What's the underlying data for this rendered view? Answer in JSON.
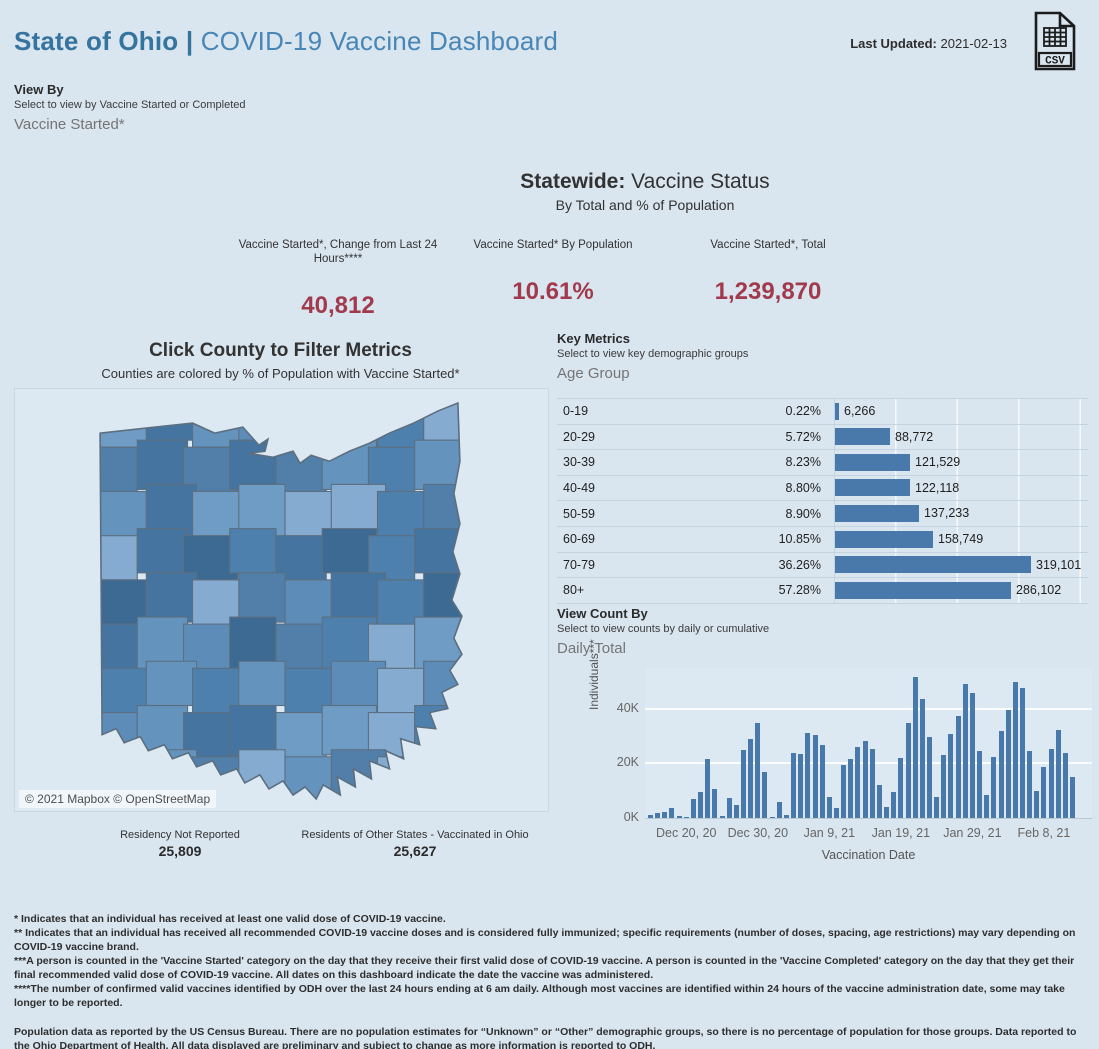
{
  "page": {
    "title_bold": "State of Ohio",
    "title_sep": " | ",
    "title_rest": "COVID-19 Vaccine Dashboard",
    "last_updated_label": "Last Updated:",
    "last_updated_value": " 2021-02-13",
    "csv_icon_label": "CSV"
  },
  "colors": {
    "page_bg": "#d9e5ef",
    "header_blue_bold": "#35749f",
    "header_blue": "#4886b6",
    "kpi_red": "#a13a4c",
    "bar_blue": "#4879aa",
    "map_border": "#5c6f80",
    "map_palette": [
      "#6f9cc4",
      "#5d8cb8",
      "#4e80ad",
      "#44749f",
      "#3c6a93",
      "#85abd0",
      "#6493bd",
      "#527fa9"
    ]
  },
  "view_by": {
    "label": "View By",
    "hint": "Select to view by Vaccine Started or Completed",
    "value": "Vaccine Started*"
  },
  "statewide": {
    "title_bold": "Statewide:",
    "title_rest": " Vaccine Status",
    "subtitle": "By Total and % of Population",
    "kpis": [
      {
        "label": "Vaccine Started*, Change from Last 24 Hours****",
        "value": "40,812"
      },
      {
        "label": "Vaccine Started* By Population",
        "value": "10.61%"
      },
      {
        "label": "Vaccine Started*, Total",
        "value": "1,239,870"
      }
    ]
  },
  "map": {
    "title": "Click County to Filter Metrics",
    "subtitle": "Counties are colored by % of Population with Vaccine Started*",
    "attribution": "© 2021 Mapbox © OpenStreetMap"
  },
  "below_map": [
    {
      "label": "Residency Not Reported",
      "value": "25,809"
    },
    {
      "label": "Residents of Other States - Vaccinated in Ohio",
      "value": "25,627"
    }
  ],
  "key_metrics": {
    "title": "Key Metrics",
    "hint": "Select to view key demographic groups",
    "selector": "Age Group"
  },
  "view_count": {
    "title": "View Count By",
    "hint": "Select to view counts by daily or cumulative",
    "selector": "Daily Total"
  },
  "chart_data": [
    {
      "type": "bar",
      "title": "Key Metrics by Age Group",
      "orientation": "horizontal",
      "categories": [
        "0-19",
        "20-29",
        "30-39",
        "40-49",
        "50-59",
        "60-69",
        "70-79",
        "80+"
      ],
      "pct_of_population": [
        "0.22%",
        "5.72%",
        "8.23%",
        "8.80%",
        "8.90%",
        "10.85%",
        "36.26%",
        "57.28%"
      ],
      "values": [
        6266,
        88772,
        121529,
        122118,
        137233,
        158749,
        319101,
        286102
      ],
      "value_labels": [
        "6,266",
        "88,772",
        "121,529",
        "122,118",
        "137,233",
        "158,749",
        "319,101",
        "286,102"
      ],
      "xlim": [
        0,
        420000
      ],
      "grid": "vertical-white"
    },
    {
      "type": "bar",
      "title": "Daily Total",
      "xlabel": "Vaccination Date",
      "ylabel": "Individuals***",
      "start_date": "2020-12-15",
      "end_date": "2021-02-12",
      "y_ticks": [
        "0K",
        "20K",
        "40K"
      ],
      "ylim_thousands": [
        0,
        55
      ],
      "x_tick_labels": [
        "Dec 20, 20",
        "Dec 30, 20",
        "Jan 9, 21",
        "Jan 19, 21",
        "Jan 29, 21",
        "Feb 8, 21"
      ],
      "x_tick_indices": [
        5,
        15,
        25,
        35,
        45,
        55
      ],
      "values_thousands": [
        1.1,
        2.0,
        2.1,
        3.7,
        0.6,
        0.3,
        6.9,
        9.6,
        21.7,
        10.8,
        0.6,
        7.2,
        4.9,
        25.0,
        29.0,
        35.0,
        17.0,
        0.4,
        5.8,
        1.2,
        23.9,
        23.3,
        31.0,
        30.4,
        26.7,
        7.8,
        3.7,
        19.6,
        21.6,
        26.0,
        28.3,
        25.2,
        12.1,
        4.2,
        9.5,
        22.0,
        34.9,
        51.7,
        43.8,
        29.8,
        7.8,
        23.0,
        30.8,
        37.3,
        49.1,
        45.8,
        24.6,
        8.4,
        22.4,
        31.8,
        39.5,
        50.0,
        47.6,
        24.6,
        9.8,
        18.7,
        25.4,
        32.4,
        24.0,
        15.0
      ]
    }
  ],
  "footnotes": {
    "lines": [
      "* Indicates that an individual has received at least one valid dose of COVID-19 vaccine.",
      "** Indicates that an individual has received all recommended COVID-19 vaccine doses and is considered fully immunized; specific requirements (number of doses, spacing, age restrictions) may vary depending on COVID-19 vaccine brand.",
      "***A person is counted in the 'Vaccine Started' category on the day that they receive their first valid dose of COVID-19 vaccine.  A person is counted in the 'Vaccine Completed' category on the day that they get their final recommended valid dose of COVID-19 vaccine. All dates on this dashboard indicate the date the vaccine was administered.",
      "****The number of confirmed valid vaccines identified by ODH over the last 24 hours ending at 6 am daily. Although most vaccines are identified within 24 hours of the vaccine administration date, some may take longer to be reported."
    ],
    "population": "Population data as reported by the US Census Bureau. There are no population estimates for “Unknown” or “Other” demographic groups, so there is no percentage of population for those groups.  Data reported to the Ohio Department of Health.  All data displayed are preliminary and subject to change as more information is reported to ODH."
  }
}
